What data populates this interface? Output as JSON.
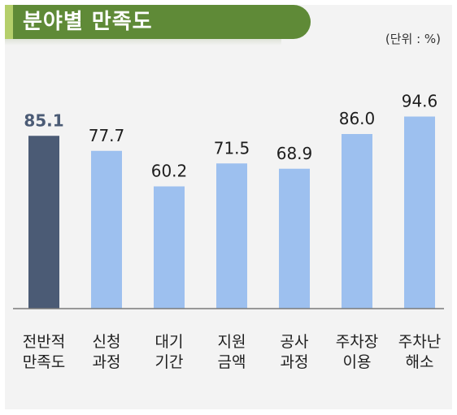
{
  "title": "분야별 만족도",
  "unit": "(단위 : %)",
  "colors": {
    "highlight": "#4b5b75",
    "bar": "#9dc0ef",
    "frame": "#f3f3f3",
    "title_bg": "#5f8a37"
  },
  "chart_data": {
    "type": "bar",
    "categories": [
      [
        "전반적",
        "만족도"
      ],
      [
        "신청",
        "과정"
      ],
      [
        "대기",
        "기간"
      ],
      [
        "지원",
        "금액"
      ],
      [
        "공사",
        "과정"
      ],
      [
        "주차장",
        "이용"
      ],
      [
        "주차난",
        "해소"
      ]
    ],
    "values": [
      85.1,
      77.7,
      60.2,
      71.5,
      68.9,
      86.0,
      94.6
    ],
    "value_labels": [
      "85.1",
      "77.7",
      "60.2",
      "71.5",
      "68.9",
      "86.0",
      "94.6"
    ],
    "highlight_index": 0,
    "ylim": [
      0,
      100
    ],
    "grid": false,
    "legend": "none"
  }
}
